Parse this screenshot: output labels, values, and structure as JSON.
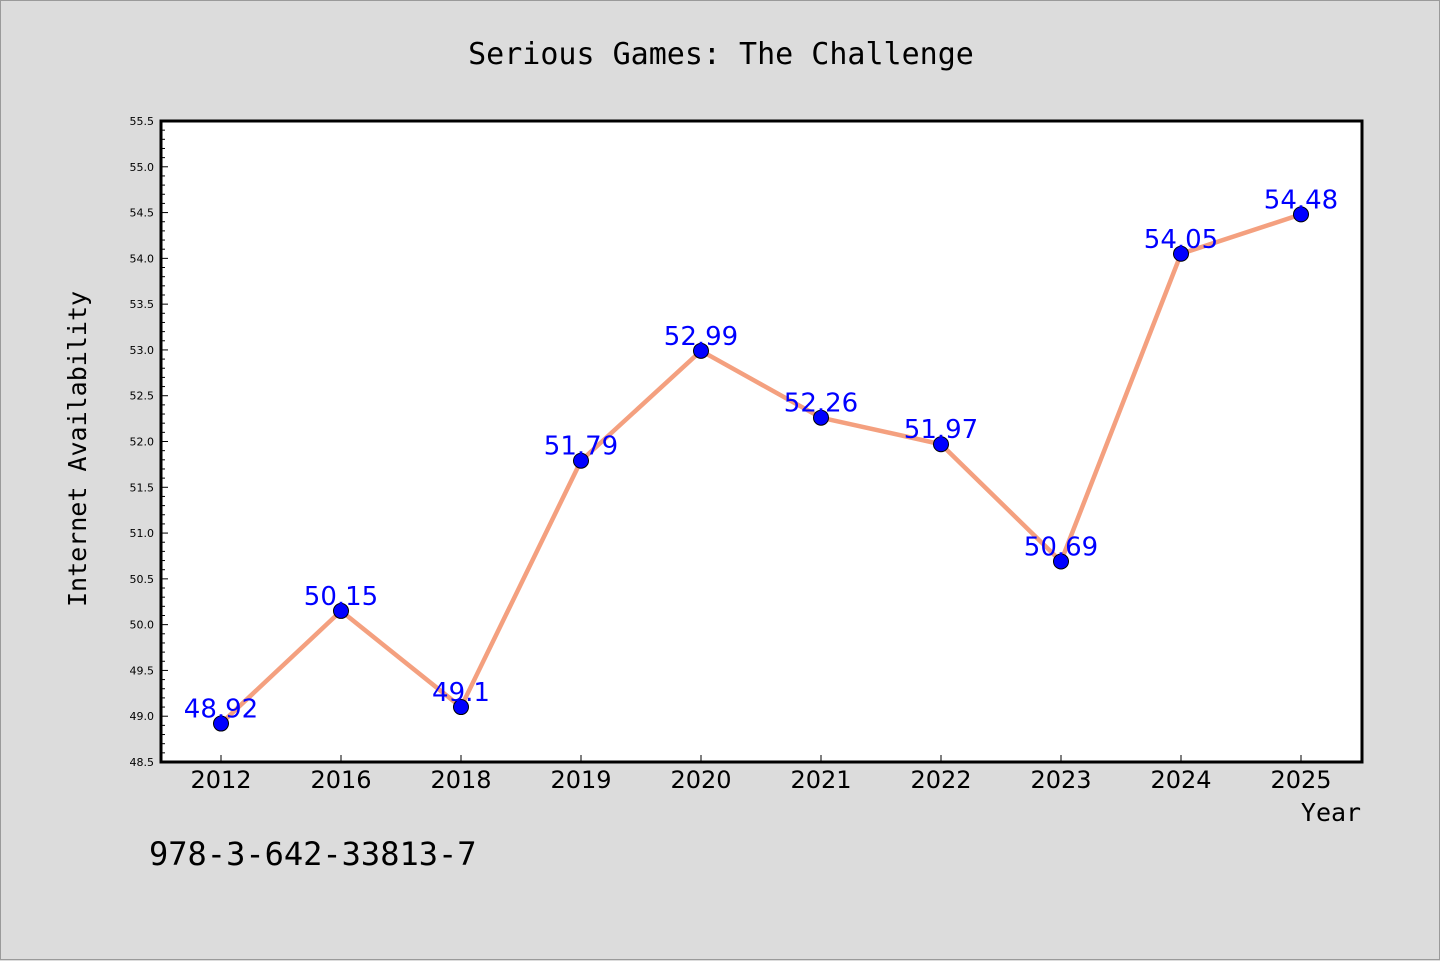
{
  "chart_data": {
    "type": "line",
    "title": "Serious Games: The Challenge",
    "xlabel": "Year",
    "ylabel": "Internet Availability",
    "categories": [
      "2012",
      "2016",
      "2018",
      "2019",
      "2020",
      "2021",
      "2022",
      "2023",
      "2024",
      "2025"
    ],
    "series": [
      {
        "values": [
          48.92,
          50.15,
          49.1,
          51.79,
          52.99,
          52.26,
          51.97,
          50.69,
          54.05,
          54.48
        ],
        "labels": [
          "48.92",
          "50.15",
          "49.1",
          "51.79",
          "52.99",
          "52.26",
          "51.97",
          "50.69",
          "54.05",
          "54.48"
        ],
        "line_color": "#f4a07f",
        "marker_color": "#0000ff"
      }
    ],
    "ylim": [
      48.5,
      55.5
    ],
    "yticks": [
      "48.5",
      "49.0",
      "49.5",
      "50.0",
      "50.5",
      "51.0",
      "51.5",
      "52.0",
      "52.5",
      "53.0",
      "53.5",
      "54.0",
      "54.5",
      "55.0",
      "55.5"
    ],
    "grid": false,
    "legend": "none"
  },
  "footnote": "978-3-642-33813-7",
  "colors": {
    "background": "#dcdcdc",
    "plot_background": "#ffffff",
    "line": "#f4a07f",
    "marker": "#0000ff",
    "data_label": "#0000ff"
  }
}
